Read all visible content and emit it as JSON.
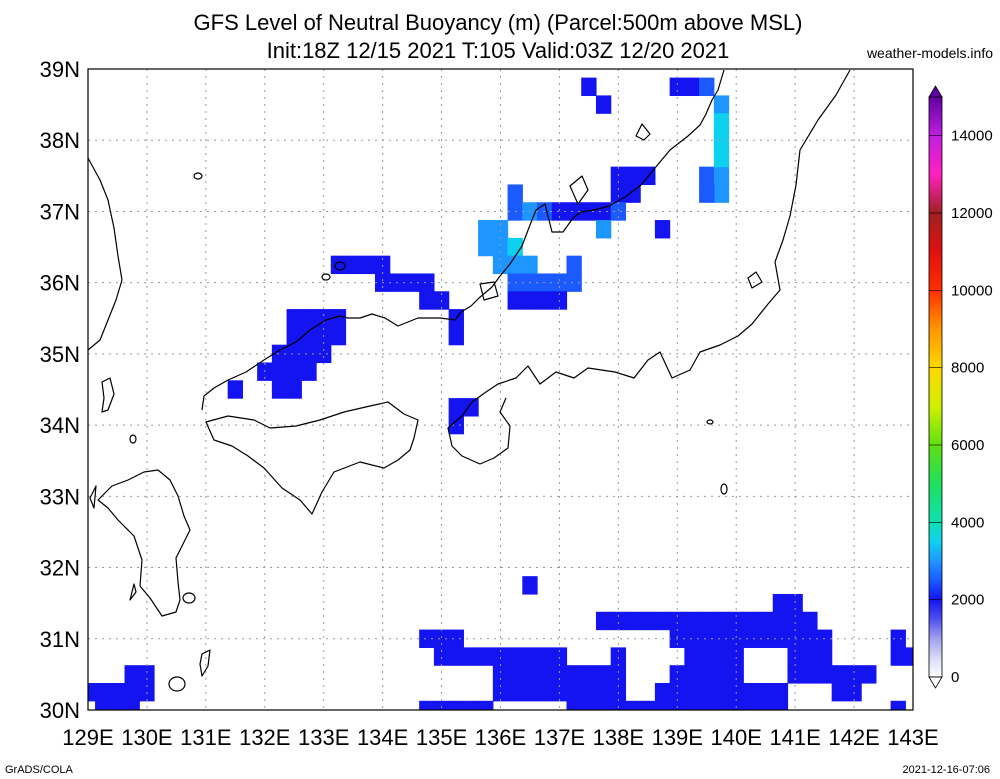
{
  "header": {
    "title_line1": "GFS Level of Neutral Buoyancy (m) (Parcel:500m above MSL)",
    "title_line2": "Init:18Z 12/15 2021 T:105 Valid:03Z 12/20 2021",
    "site": "weather-models.info"
  },
  "footer": {
    "left": "GrADS/COLA",
    "right": "2021-12-16-07:06"
  },
  "chart_data": {
    "type": "heatmap",
    "title": "GFS Level of Neutral Buoyancy (m) (Parcel:500m above MSL)",
    "subtitle": "Init:18Z 12/15 2021 T:105 Valid:03Z 12/20 2021",
    "units": "m",
    "xlim": [
      129,
      143
    ],
    "ylim": [
      30,
      39
    ],
    "x_ticks": [
      "129E",
      "130E",
      "131E",
      "132E",
      "133E",
      "134E",
      "135E",
      "136E",
      "137E",
      "138E",
      "139E",
      "140E",
      "141E",
      "142E",
      "143E"
    ],
    "y_ticks": [
      "30N",
      "31N",
      "32N",
      "33N",
      "34N",
      "35N",
      "36N",
      "37N",
      "38N",
      "39N"
    ],
    "grid": true,
    "colorbar": {
      "placement": "right",
      "ticks": [
        "0",
        "2000",
        "4000",
        "6000",
        "8000",
        "10000",
        "12000",
        "14000"
      ],
      "stops": [
        {
          "v": 0,
          "c": "#ffffff"
        },
        {
          "v": 500,
          "c": "#dadaf5"
        },
        {
          "v": 1000,
          "c": "#a0a0f0"
        },
        {
          "v": 1500,
          "c": "#5050ee"
        },
        {
          "v": 2000,
          "c": "#1414f0"
        },
        {
          "v": 2500,
          "c": "#1a5aff"
        },
        {
          "v": 3000,
          "c": "#1e96ff"
        },
        {
          "v": 3500,
          "c": "#10d0f0"
        },
        {
          "v": 4000,
          "c": "#10e0b0"
        },
        {
          "v": 5000,
          "c": "#20e060"
        },
        {
          "v": 6000,
          "c": "#60e010"
        },
        {
          "v": 7000,
          "c": "#d0f000"
        },
        {
          "v": 8000,
          "c": "#ffd800"
        },
        {
          "v": 9000,
          "c": "#ff9600"
        },
        {
          "v": 10000,
          "c": "#ff3000"
        },
        {
          "v": 11000,
          "c": "#e01010"
        },
        {
          "v": 12000,
          "c": "#a02020"
        },
        {
          "v": 13000,
          "c": "#ff20c0"
        },
        {
          "v": 14000,
          "c": "#c020e0"
        },
        {
          "v": 15000,
          "c": "#6000a0"
        }
      ]
    },
    "cell_size_deg": 0.25,
    "cells": [
      [
        137.5,
        38.75,
        2000
      ],
      [
        137.75,
        38.5,
        2000
      ],
      [
        139.0,
        38.75,
        2000
      ],
      [
        139.25,
        38.75,
        2000
      ],
      [
        139.5,
        38.75,
        2500
      ],
      [
        139.75,
        38.5,
        3000
      ],
      [
        139.75,
        38.25,
        3500
      ],
      [
        138.0,
        37.5,
        2000
      ],
      [
        138.25,
        37.5,
        2000
      ],
      [
        138.5,
        37.5,
        2000
      ],
      [
        138.0,
        37.25,
        2000
      ],
      [
        138.25,
        37.25,
        2000
      ],
      [
        139.5,
        37.5,
        2500
      ],
      [
        139.75,
        37.5,
        3000
      ],
      [
        139.75,
        37.25,
        3000
      ],
      [
        139.5,
        37.25,
        2500
      ],
      [
        139.75,
        37.75,
        3500
      ],
      [
        139.75,
        38.0,
        3500
      ],
      [
        136.25,
        37.25,
        2500
      ],
      [
        136.25,
        37.0,
        2500
      ],
      [
        136.5,
        37.0,
        3000
      ],
      [
        136.75,
        37.0,
        2500
      ],
      [
        137.0,
        37.0,
        2000
      ],
      [
        137.25,
        37.0,
        2000
      ],
      [
        137.5,
        37.0,
        2000
      ],
      [
        137.75,
        37.0,
        2000
      ],
      [
        138.0,
        37.0,
        2500
      ],
      [
        137.75,
        36.75,
        3000
      ],
      [
        138.75,
        36.75,
        2000
      ],
      [
        135.75,
        36.75,
        3000
      ],
      [
        136.0,
        36.75,
        3000
      ],
      [
        135.75,
        36.5,
        3000
      ],
      [
        136.0,
        36.5,
        3000
      ],
      [
        136.25,
        36.5,
        3500
      ],
      [
        136.0,
        36.25,
        3000
      ],
      [
        136.25,
        36.25,
        3000
      ],
      [
        136.5,
        36.25,
        3000
      ],
      [
        137.25,
        36.25,
        2500
      ],
      [
        136.25,
        36.0,
        2500
      ],
      [
        136.5,
        36.0,
        2500
      ],
      [
        136.75,
        36.0,
        2500
      ],
      [
        137.0,
        36.0,
        2500
      ],
      [
        137.25,
        36.0,
        2500
      ],
      [
        136.25,
        35.75,
        2000
      ],
      [
        136.5,
        35.75,
        2000
      ],
      [
        136.75,
        35.75,
        2000
      ],
      [
        137.0,
        35.75,
        2000
      ],
      [
        133.25,
        36.25,
        2000
      ],
      [
        133.5,
        36.25,
        2000
      ],
      [
        133.75,
        36.25,
        2000
      ],
      [
        134.0,
        36.25,
        2000
      ],
      [
        134.0,
        36.0,
        2000
      ],
      [
        134.25,
        36.0,
        2000
      ],
      [
        134.5,
        36.0,
        2000
      ],
      [
        134.75,
        36.0,
        2000
      ],
      [
        134.75,
        35.75,
        2000
      ],
      [
        135.0,
        35.75,
        2000
      ],
      [
        135.25,
        35.5,
        2000
      ],
      [
        135.25,
        35.25,
        2000
      ],
      [
        132.5,
        35.5,
        2000
      ],
      [
        132.75,
        35.5,
        2000
      ],
      [
        133.0,
        35.5,
        2000
      ],
      [
        133.25,
        35.5,
        2000
      ],
      [
        132.5,
        35.25,
        2000
      ],
      [
        132.75,
        35.25,
        2000
      ],
      [
        133.0,
        35.25,
        2000
      ],
      [
        133.25,
        35.25,
        2000
      ],
      [
        132.25,
        35.0,
        2000
      ],
      [
        132.5,
        35.0,
        2000
      ],
      [
        132.75,
        35.0,
        2000
      ],
      [
        133.0,
        35.0,
        2000
      ],
      [
        132.0,
        34.75,
        2000
      ],
      [
        132.25,
        34.75,
        2000
      ],
      [
        132.5,
        34.75,
        2000
      ],
      [
        132.75,
        34.75,
        2000
      ],
      [
        132.25,
        34.5,
        2000
      ],
      [
        132.5,
        34.5,
        2000
      ],
      [
        131.5,
        34.5,
        2000
      ],
      [
        135.25,
        34.25,
        2000
      ],
      [
        135.5,
        34.25,
        2000
      ],
      [
        135.25,
        34.0,
        2000
      ],
      [
        136.5,
        31.75,
        2000
      ],
      [
        134.75,
        31.0,
        2000
      ],
      [
        135.0,
        31.0,
        2000
      ],
      [
        135.25,
        31.0,
        2000
      ],
      [
        137.75,
        31.25,
        2000
      ],
      [
        138.0,
        31.25,
        2000
      ],
      [
        138.25,
        31.25,
        2000
      ],
      [
        138.5,
        31.25,
        2000
      ],
      [
        138.75,
        31.25,
        2000
      ],
      [
        139.0,
        31.25,
        2000
      ],
      [
        139.25,
        31.25,
        2000
      ],
      [
        139.5,
        31.25,
        2000
      ],
      [
        139.75,
        31.25,
        2000
      ],
      [
        140.0,
        31.25,
        2000
      ],
      [
        140.25,
        31.25,
        2000
      ],
      [
        140.5,
        31.25,
        2000
      ],
      [
        140.75,
        31.25,
        2000
      ],
      [
        141.0,
        31.25,
        2000
      ],
      [
        141.25,
        31.25,
        2000
      ],
      [
        140.75,
        31.5,
        2000
      ],
      [
        141.0,
        31.5,
        2000
      ],
      [
        139.0,
        31.0,
        2000
      ],
      [
        139.25,
        31.0,
        2000
      ],
      [
        139.5,
        31.0,
        2000
      ],
      [
        139.75,
        31.0,
        2000
      ],
      [
        140.0,
        31.0,
        2000
      ],
      [
        140.25,
        31.0,
        2000
      ],
      [
        140.5,
        31.0,
        2000
      ],
      [
        140.75,
        31.0,
        2000
      ],
      [
        141.0,
        31.0,
        2000
      ],
      [
        141.25,
        31.0,
        2000
      ],
      [
        141.5,
        31.0,
        2000
      ],
      [
        142.75,
        31.0,
        2000
      ],
      [
        142.75,
        30.75,
        2000
      ],
      [
        143.0,
        30.75,
        2000
      ],
      [
        135.0,
        30.75,
        2000
      ],
      [
        135.25,
        30.75,
        2000
      ],
      [
        135.5,
        30.75,
        2000
      ],
      [
        135.75,
        30.75,
        2000
      ],
      [
        136.0,
        30.75,
        2000
      ],
      [
        136.25,
        30.75,
        2000
      ],
      [
        136.5,
        30.75,
        2000
      ],
      [
        136.75,
        30.75,
        2000
      ],
      [
        137.0,
        30.75,
        2000
      ],
      [
        138.0,
        30.75,
        2000
      ],
      [
        139.25,
        30.75,
        2000
      ],
      [
        139.5,
        30.75,
        2000
      ],
      [
        139.75,
        30.75,
        2000
      ],
      [
        140.0,
        30.75,
        2000
      ],
      [
        141.0,
        30.75,
        2000
      ],
      [
        141.25,
        30.75,
        2000
      ],
      [
        141.5,
        30.75,
        2000
      ],
      [
        136.0,
        30.5,
        2000
      ],
      [
        136.25,
        30.5,
        2000
      ],
      [
        136.5,
        30.5,
        2000
      ],
      [
        136.75,
        30.5,
        2000
      ],
      [
        137.0,
        30.5,
        2000
      ],
      [
        137.25,
        30.5,
        2000
      ],
      [
        137.5,
        30.5,
        2000
      ],
      [
        137.75,
        30.5,
        2000
      ],
      [
        138.0,
        30.5,
        2000
      ],
      [
        139.0,
        30.5,
        2000
      ],
      [
        139.25,
        30.5,
        2000
      ],
      [
        139.5,
        30.5,
        2000
      ],
      [
        139.75,
        30.5,
        2000
      ],
      [
        140.0,
        30.5,
        2000
      ],
      [
        141.0,
        30.5,
        2000
      ],
      [
        141.25,
        30.5,
        2000
      ],
      [
        141.5,
        30.5,
        2000
      ],
      [
        141.75,
        30.5,
        2000
      ],
      [
        142.0,
        30.5,
        2000
      ],
      [
        142.25,
        30.5,
        2000
      ],
      [
        136.0,
        30.25,
        2000
      ],
      [
        136.25,
        30.25,
        2000
      ],
      [
        136.5,
        30.25,
        2000
      ],
      [
        136.75,
        30.25,
        2000
      ],
      [
        137.0,
        30.25,
        2000
      ],
      [
        137.25,
        30.25,
        2000
      ],
      [
        137.5,
        30.25,
        2000
      ],
      [
        137.75,
        30.25,
        2000
      ],
      [
        138.0,
        30.25,
        2000
      ],
      [
        138.75,
        30.25,
        2000
      ],
      [
        139.0,
        30.25,
        2000
      ],
      [
        139.25,
        30.25,
        2000
      ],
      [
        139.5,
        30.25,
        2000
      ],
      [
        139.75,
        30.25,
        2000
      ],
      [
        140.0,
        30.25,
        2000
      ],
      [
        140.25,
        30.25,
        2000
      ],
      [
        140.5,
        30.25,
        2000
      ],
      [
        140.75,
        30.25,
        2000
      ],
      [
        141.75,
        30.25,
        2000
      ],
      [
        142.0,
        30.25,
        2000
      ],
      [
        134.75,
        30.0,
        2000
      ],
      [
        135.0,
        30.0,
        2000
      ],
      [
        135.25,
        30.0,
        2000
      ],
      [
        135.5,
        30.0,
        2000
      ],
      [
        135.75,
        30.0,
        2000
      ],
      [
        137.25,
        30.0,
        2000
      ],
      [
        137.5,
        30.0,
        2000
      ],
      [
        137.75,
        30.0,
        2000
      ],
      [
        138.0,
        30.0,
        2000
      ],
      [
        138.25,
        30.0,
        2000
      ],
      [
        138.5,
        30.0,
        2000
      ],
      [
        138.75,
        30.0,
        2000
      ],
      [
        139.0,
        30.0,
        2000
      ],
      [
        139.25,
        30.0,
        2000
      ],
      [
        139.5,
        30.0,
        2000
      ],
      [
        139.75,
        30.0,
        2000
      ],
      [
        140.0,
        30.0,
        2000
      ],
      [
        140.25,
        30.0,
        2000
      ],
      [
        140.5,
        30.0,
        2000
      ],
      [
        140.75,
        30.0,
        2000
      ],
      [
        142.75,
        30.0,
        2000
      ],
      [
        129.0,
        30.25,
        2000
      ],
      [
        129.25,
        30.25,
        2000
      ],
      [
        129.5,
        30.25,
        2000
      ],
      [
        129.75,
        30.25,
        2000
      ],
      [
        130.0,
        30.25,
        2000
      ],
      [
        129.25,
        30.0,
        2000
      ],
      [
        129.5,
        30.0,
        2000
      ],
      [
        129.75,
        30.0,
        2000
      ],
      [
        129.75,
        30.5,
        2000
      ],
      [
        130.0,
        30.5,
        2000
      ]
    ]
  }
}
